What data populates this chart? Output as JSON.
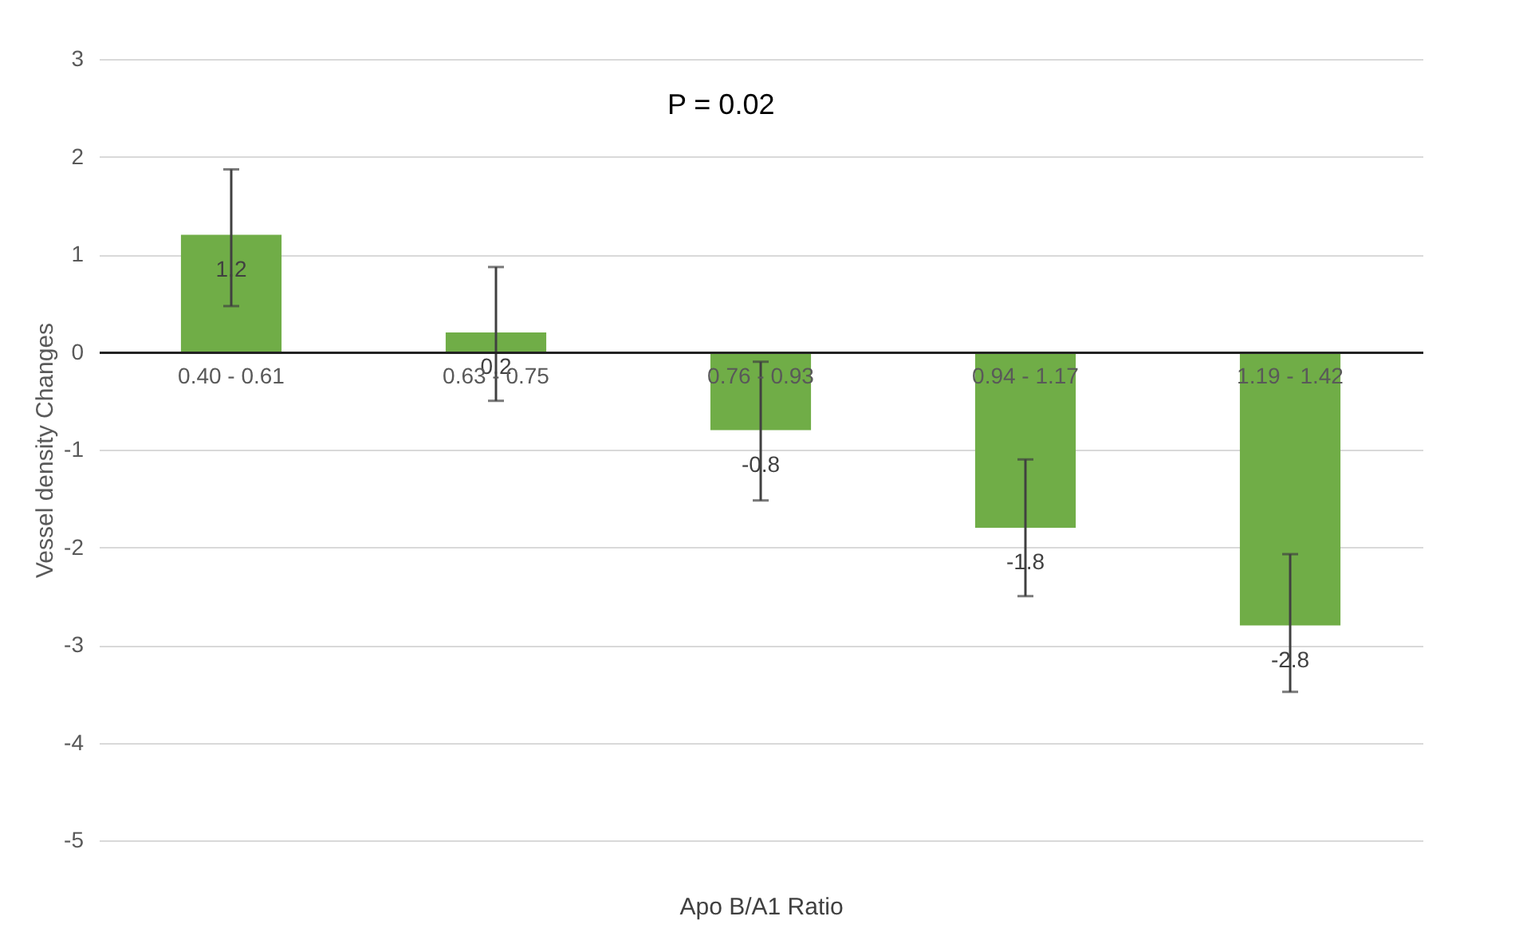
{
  "chart_data": {
    "type": "bar",
    "xlabel": "Apo B/A1 Ratio",
    "ylabel": "Vessel density Changes",
    "annotations": [
      "P = 0.02"
    ],
    "categories": [
      "0.40 - 0.61",
      "0.63 - 0.75",
      "0.76 - 0.93",
      "0.94 - 1.17",
      "1.19 - 1.42"
    ],
    "values": [
      1.2,
      0.2,
      -0.8,
      -1.8,
      -2.8
    ],
    "errors": [
      [
        0.47,
        1.87
      ],
      [
        -0.5,
        0.87
      ],
      [
        -1.52,
        -0.1
      ],
      [
        -2.5,
        -1.1
      ],
      [
        -3.48,
        -2.07
      ]
    ],
    "color": "#70ad47",
    "data_labels": true,
    "ylim": [
      -5,
      3
    ],
    "yticks": [
      -5,
      -4,
      -3,
      -2,
      -1,
      0,
      1,
      2,
      3
    ],
    "grid": "y"
  }
}
